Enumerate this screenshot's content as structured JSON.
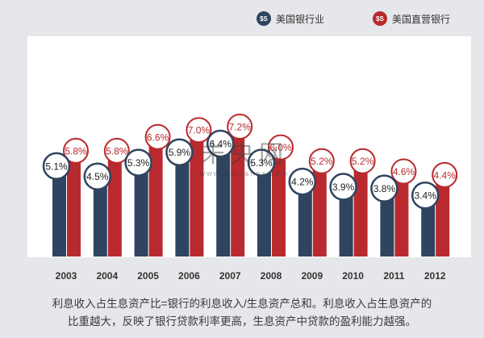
{
  "legend": {
    "series1": "美国银行业",
    "series2": "美国直营银行",
    "icon1": "bank-logo-icon",
    "icon2": "bank-logo-icon"
  },
  "chart_data": {
    "type": "bar",
    "title": "",
    "xlabel": "",
    "ylabel": "",
    "categories": [
      "2003",
      "2004",
      "2005",
      "2006",
      "2007",
      "2008",
      "2009",
      "2010",
      "2011",
      "2012"
    ],
    "series": [
      {
        "name": "美国银行业",
        "color": "#2f4460",
        "values": [
          5.1,
          4.5,
          5.3,
          5.9,
          6.4,
          5.3,
          4.2,
          3.9,
          3.8,
          3.4
        ],
        "labels": [
          "5.1%",
          "4.5%",
          "5.3%",
          "5.9%",
          "6.4%",
          "5.3%",
          "4.2%",
          "3.9%",
          "3.8%",
          "3.4%"
        ]
      },
      {
        "name": "美国直营银行",
        "color": "#b92a2e",
        "values": [
          5.8,
          5.8,
          6.6,
          7.0,
          7.2,
          6.0,
          5.2,
          5.2,
          4.6,
          4.4
        ],
        "labels": [
          "5.8%",
          "5.8%",
          "6.6%",
          "7.0%",
          "7.2%",
          "6.0%",
          "5.2%",
          "5.2%",
          "4.6%",
          "4.4%"
        ]
      }
    ],
    "ylim": [
      0,
      8.5
    ],
    "grid": false
  },
  "watermark": {
    "text": "未央网",
    "url": "www.weiyangx.com"
  },
  "caption": {
    "line1": "利息收入占生息资产比=银行的利息收入/生息资产总和。利息收入占生息资产的",
    "line2": "比重越大，反映了银行贷款利率更高，生息资产中贷款的盈利能力越强。"
  }
}
